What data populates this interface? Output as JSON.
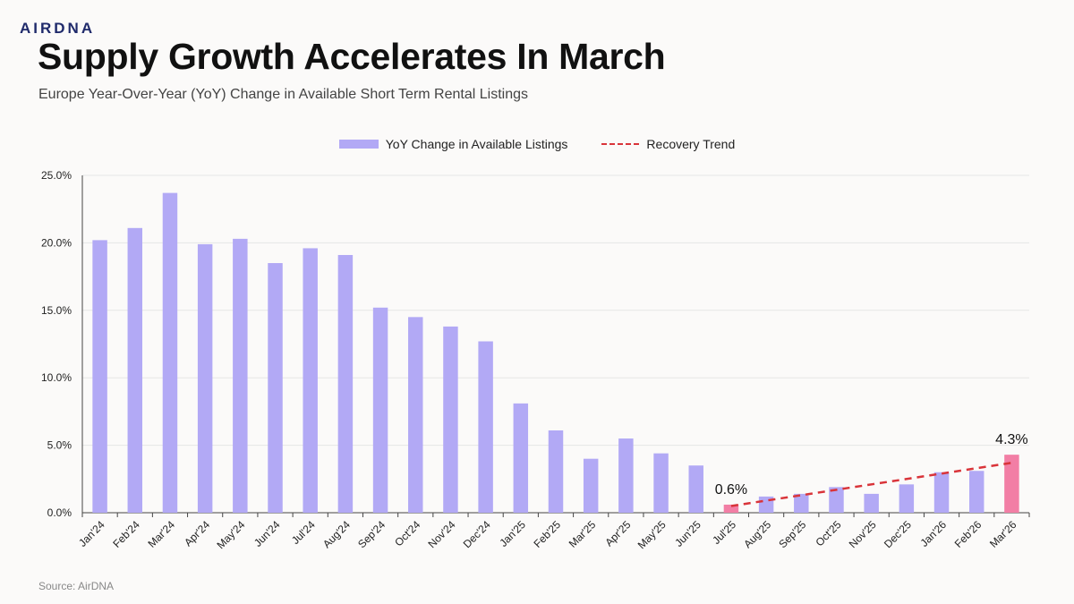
{
  "brand": {
    "logo_text": "AIRDNA"
  },
  "header": {
    "title": "Supply Growth Accelerates In March",
    "subtitle": "Europe Year-Over-Year (YoY) Change in Available Short Term Rental Listings"
  },
  "legend": {
    "bar_label": "YoY Change in Available Listings",
    "line_label": "Recovery Trend"
  },
  "footer": {
    "source": "Source: AirDNA"
  },
  "colors": {
    "bar": "#b2a9f5",
    "highlight_bar": "#f27ea5",
    "trend": "#d9343a",
    "grid": "#e6e6e6"
  },
  "chart_data": {
    "type": "bar",
    "categories": [
      "Jan'24",
      "Feb'24",
      "Mar'24",
      "Apr'24",
      "May'24",
      "Jun'24",
      "Jul'24",
      "Aug'24",
      "Sep'24",
      "Oct'24",
      "Nov'24",
      "Dec'24",
      "Jan'25",
      "Feb'25",
      "Mar'25",
      "Apr'25",
      "May'25",
      "Jun'25",
      "Jul'25",
      "Aug'25",
      "Sep'25",
      "Oct'25",
      "Nov'25",
      "Dec'25",
      "Jan'26",
      "Feb'26",
      "Mar'26"
    ],
    "series": [
      {
        "name": "YoY Change in Available Listings",
        "values": [
          20.2,
          21.1,
          23.7,
          19.9,
          20.3,
          18.5,
          19.6,
          19.1,
          15.2,
          14.5,
          13.8,
          12.7,
          8.1,
          6.1,
          4.0,
          5.5,
          4.4,
          3.5,
          0.6,
          1.2,
          1.4,
          1.9,
          1.4,
          2.1,
          3.0,
          3.1,
          4.3
        ]
      }
    ],
    "highlighted_categories": [
      "Jul'25",
      "Mar'26"
    ],
    "data_labels": [
      {
        "category": "Jul'25",
        "text": "0.6%"
      },
      {
        "category": "Mar'26",
        "text": "4.3%"
      }
    ],
    "trend": {
      "name": "Recovery Trend",
      "style": "dashed",
      "from": {
        "category": "Jul'25",
        "value": 0.5
      },
      "to": {
        "category": "Mar'26",
        "value": 3.7
      }
    },
    "ylim": [
      0,
      25
    ],
    "yticks": [
      "0.0%",
      "5.0%",
      "10.0%",
      "15.0%",
      "20.0%",
      "25.0%"
    ],
    "ytick_values": [
      0,
      5,
      10,
      15,
      20,
      25
    ],
    "grid": true,
    "legend_position": "top-center"
  }
}
